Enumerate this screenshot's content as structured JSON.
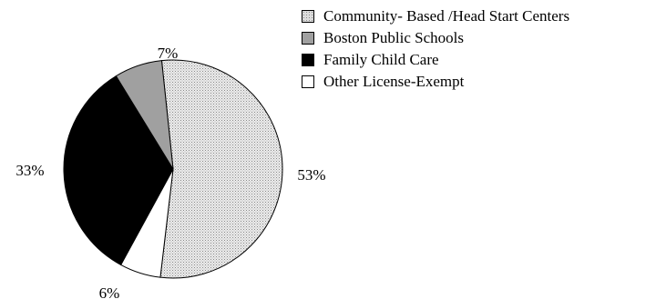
{
  "chart_data": {
    "type": "pie",
    "title": "",
    "slices": [
      {
        "label": "Community- Based /Head Start Centers",
        "value": 53,
        "display": "53%",
        "color": "#d9d9d9",
        "pattern": "dotted"
      },
      {
        "label": "Other License-Exempt",
        "value": 6,
        "display": "6%",
        "color": "#ffffff"
      },
      {
        "label": "Family Child Care",
        "value": 33,
        "display": "33%",
        "color": "#000000"
      },
      {
        "label": "Boston Public Schools",
        "value": 7,
        "display": "7%",
        "color": "#a0a0a0"
      }
    ],
    "legend": {
      "placement": "top-right",
      "entries": [
        {
          "label": "Community- Based /Head Start Centers",
          "color": "#d9d9d9",
          "pattern": "dotted"
        },
        {
          "label": "Boston Public Schools",
          "color": "#a0a0a0"
        },
        {
          "label": "Family Child Care",
          "color": "#000000"
        },
        {
          "label": "Other License-Exempt",
          "color": "#ffffff"
        }
      ]
    }
  }
}
